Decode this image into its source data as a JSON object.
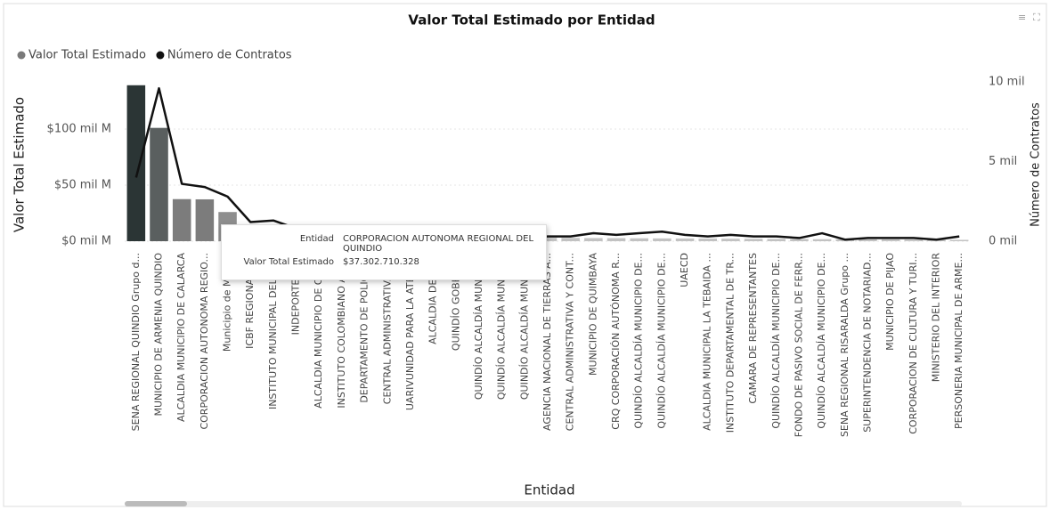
{
  "chart_data": {
    "type": "combo",
    "title": "Valor Total Estimado por Entidad",
    "x_label": "Entidad",
    "y_label": "Valor Total Estimado",
    "y2_label": "Número de Contratos",
    "categories": [
      "SENA REGIONAL QUINDIO Grupo d...",
      "MUNICIPIO DE ARMENIA QUINDIO",
      "ALCALDIA MUNICIPIO DE CALARCA",
      "CORPORACION AUTONOMA REGIO...",
      "Municipio de Mont...",
      "ICBF REGIONAL Q...",
      "INSTITUTO MUNICIPAL DEL DE...",
      "INDEPORTES Q...",
      "ALCALDIA MUNICIPIO DE CIRC...",
      "INSTITUTO COLOMBIANO AGR...",
      "DEPARTAMENTO DE POLICIA ...",
      "CENTRAL ADMINISTRATIVA Y ...",
      "UARIVUNIDAD PARA LA ATENC...",
      "ALCALDIA DE FIL...",
      "QUINDÍO GOBERN...",
      "QUINDÍO ALCALDÍA MUNICIP...",
      "QUINDÍO ALCALDÍA MUNICIP...",
      "QUINDÍO ALCALDÍA MUNICIP...",
      "AGENCIA NACIONAL DE TIERRAS A...",
      "CENTRAL ADMINISTRATIVA Y CONT...",
      "MUNICIPIO DE QUIMBAYA",
      "CRQ CORPORACIÓN AUTÓNOMA R...",
      "QUINDÍO ALCALDÍA MUNICIPIO DE...",
      "QUINDÍO ALCALDÍA MUNICIPIO DE...",
      "UAECD",
      "ALCALDIA MUNICIPAL LA TEBAIDA ...",
      "INSTITUTO DEPARTAMENTAL DE TR...",
      "CAMARA DE REPRESENTANTES",
      "QUINDÍO ALCALDÍA MUNICIPIO DE...",
      "FONDO DE PASIVO SOCIAL DE FERR...",
      "QUINDÍO ALCALDÍA MUNICIPIO DE...",
      "SENA REGIONAL RISARALDA Grupo ...",
      "SUPERINTENDENCIA DE NOTARIAD...",
      "MUNICIPIO DE PIJAO",
      "CORPORACION DE CULTURA Y TURI...",
      "MINISTERIO DEL INTERIOR",
      "PERSONERIA MUNICIPAL DE ARME..."
    ],
    "series": [
      {
        "name": "Valor Total Estimado",
        "type": "bar",
        "color": "#7a7a7a",
        "colors": [
          "#2b3535",
          "#5a5f5f",
          "#7c7c7c",
          "#7c7c7c",
          "#8e8e8e",
          "#a5a5a5",
          "#a5a5a5",
          "#b0b0b0",
          "#b0b0b0",
          "#b8b8b8",
          "#b8b8b8",
          "#b8b8b8",
          "#bdbdbd",
          "#bdbdbd",
          "#bdbdbd",
          "#c2c2c2",
          "#c2c2c2",
          "#c2c2c2",
          "#c2c2c2",
          "#c2c2c2",
          "#c2c2c2",
          "#c2c2c2",
          "#c2c2c2",
          "#c2c2c2",
          "#c2c2c2",
          "#c2c2c2",
          "#c2c2c2",
          "#c2c2c2",
          "#c2c2c2",
          "#c2c2c2",
          "#c2c2c2",
          "#c2c2c2",
          "#c2c2c2",
          "#c2c2c2",
          "#c2c2c2",
          "#c2c2c2",
          "#c2c2c2"
        ],
        "values": [
          139,
          101,
          37.5,
          37.3,
          26,
          12,
          10,
          8,
          7,
          6,
          5.5,
          5,
          4.5,
          4,
          3.8,
          3.5,
          3.3,
          3.1,
          3,
          2.9,
          2.8,
          2.7,
          2.6,
          2.5,
          2.4,
          2.3,
          2.2,
          2.1,
          2,
          1.9,
          1.8,
          1.7,
          1.6,
          1.5,
          1.4,
          1.3,
          1.2
        ]
      },
      {
        "name": "Número de Contratos",
        "type": "line",
        "axis": "y2",
        "color": "#111111",
        "values": [
          4.0,
          9.6,
          3.6,
          3.4,
          2.8,
          1.2,
          1.3,
          0.8,
          0.6,
          0.5,
          0.4,
          0.4,
          0.3,
          0.3,
          0.3,
          0.2,
          0.2,
          0.2,
          0.3,
          0.3,
          0.5,
          0.4,
          0.5,
          0.6,
          0.4,
          0.3,
          0.4,
          0.3,
          0.3,
          0.2,
          0.5,
          0.1,
          0.2,
          0.2,
          0.2,
          0.1,
          0.3
        ]
      }
    ],
    "ylim": [
      0,
      142
    ],
    "yticks": [
      {
        "value": 0,
        "label": "$0 mil M"
      },
      {
        "value": 50,
        "label": "$50 mil M"
      },
      {
        "value": 100,
        "label": "$100 mil M"
      }
    ],
    "y2lim": [
      0,
      10
    ],
    "y2ticks": [
      {
        "value": 0,
        "label": "0 mil"
      },
      {
        "value": 5,
        "label": "5 mil"
      },
      {
        "value": 10,
        "label": "10 mil"
      }
    ],
    "grid": true,
    "legend": "top-left",
    "tooltip": {
      "category": 3,
      "fields": [
        {
          "label": "Entidad",
          "value": "CORPORACION AUTONOMA REGIONAL DEL QUINDIO"
        },
        {
          "label": "Valor Total Estimado",
          "value": "$37.302.710.328"
        }
      ]
    }
  }
}
